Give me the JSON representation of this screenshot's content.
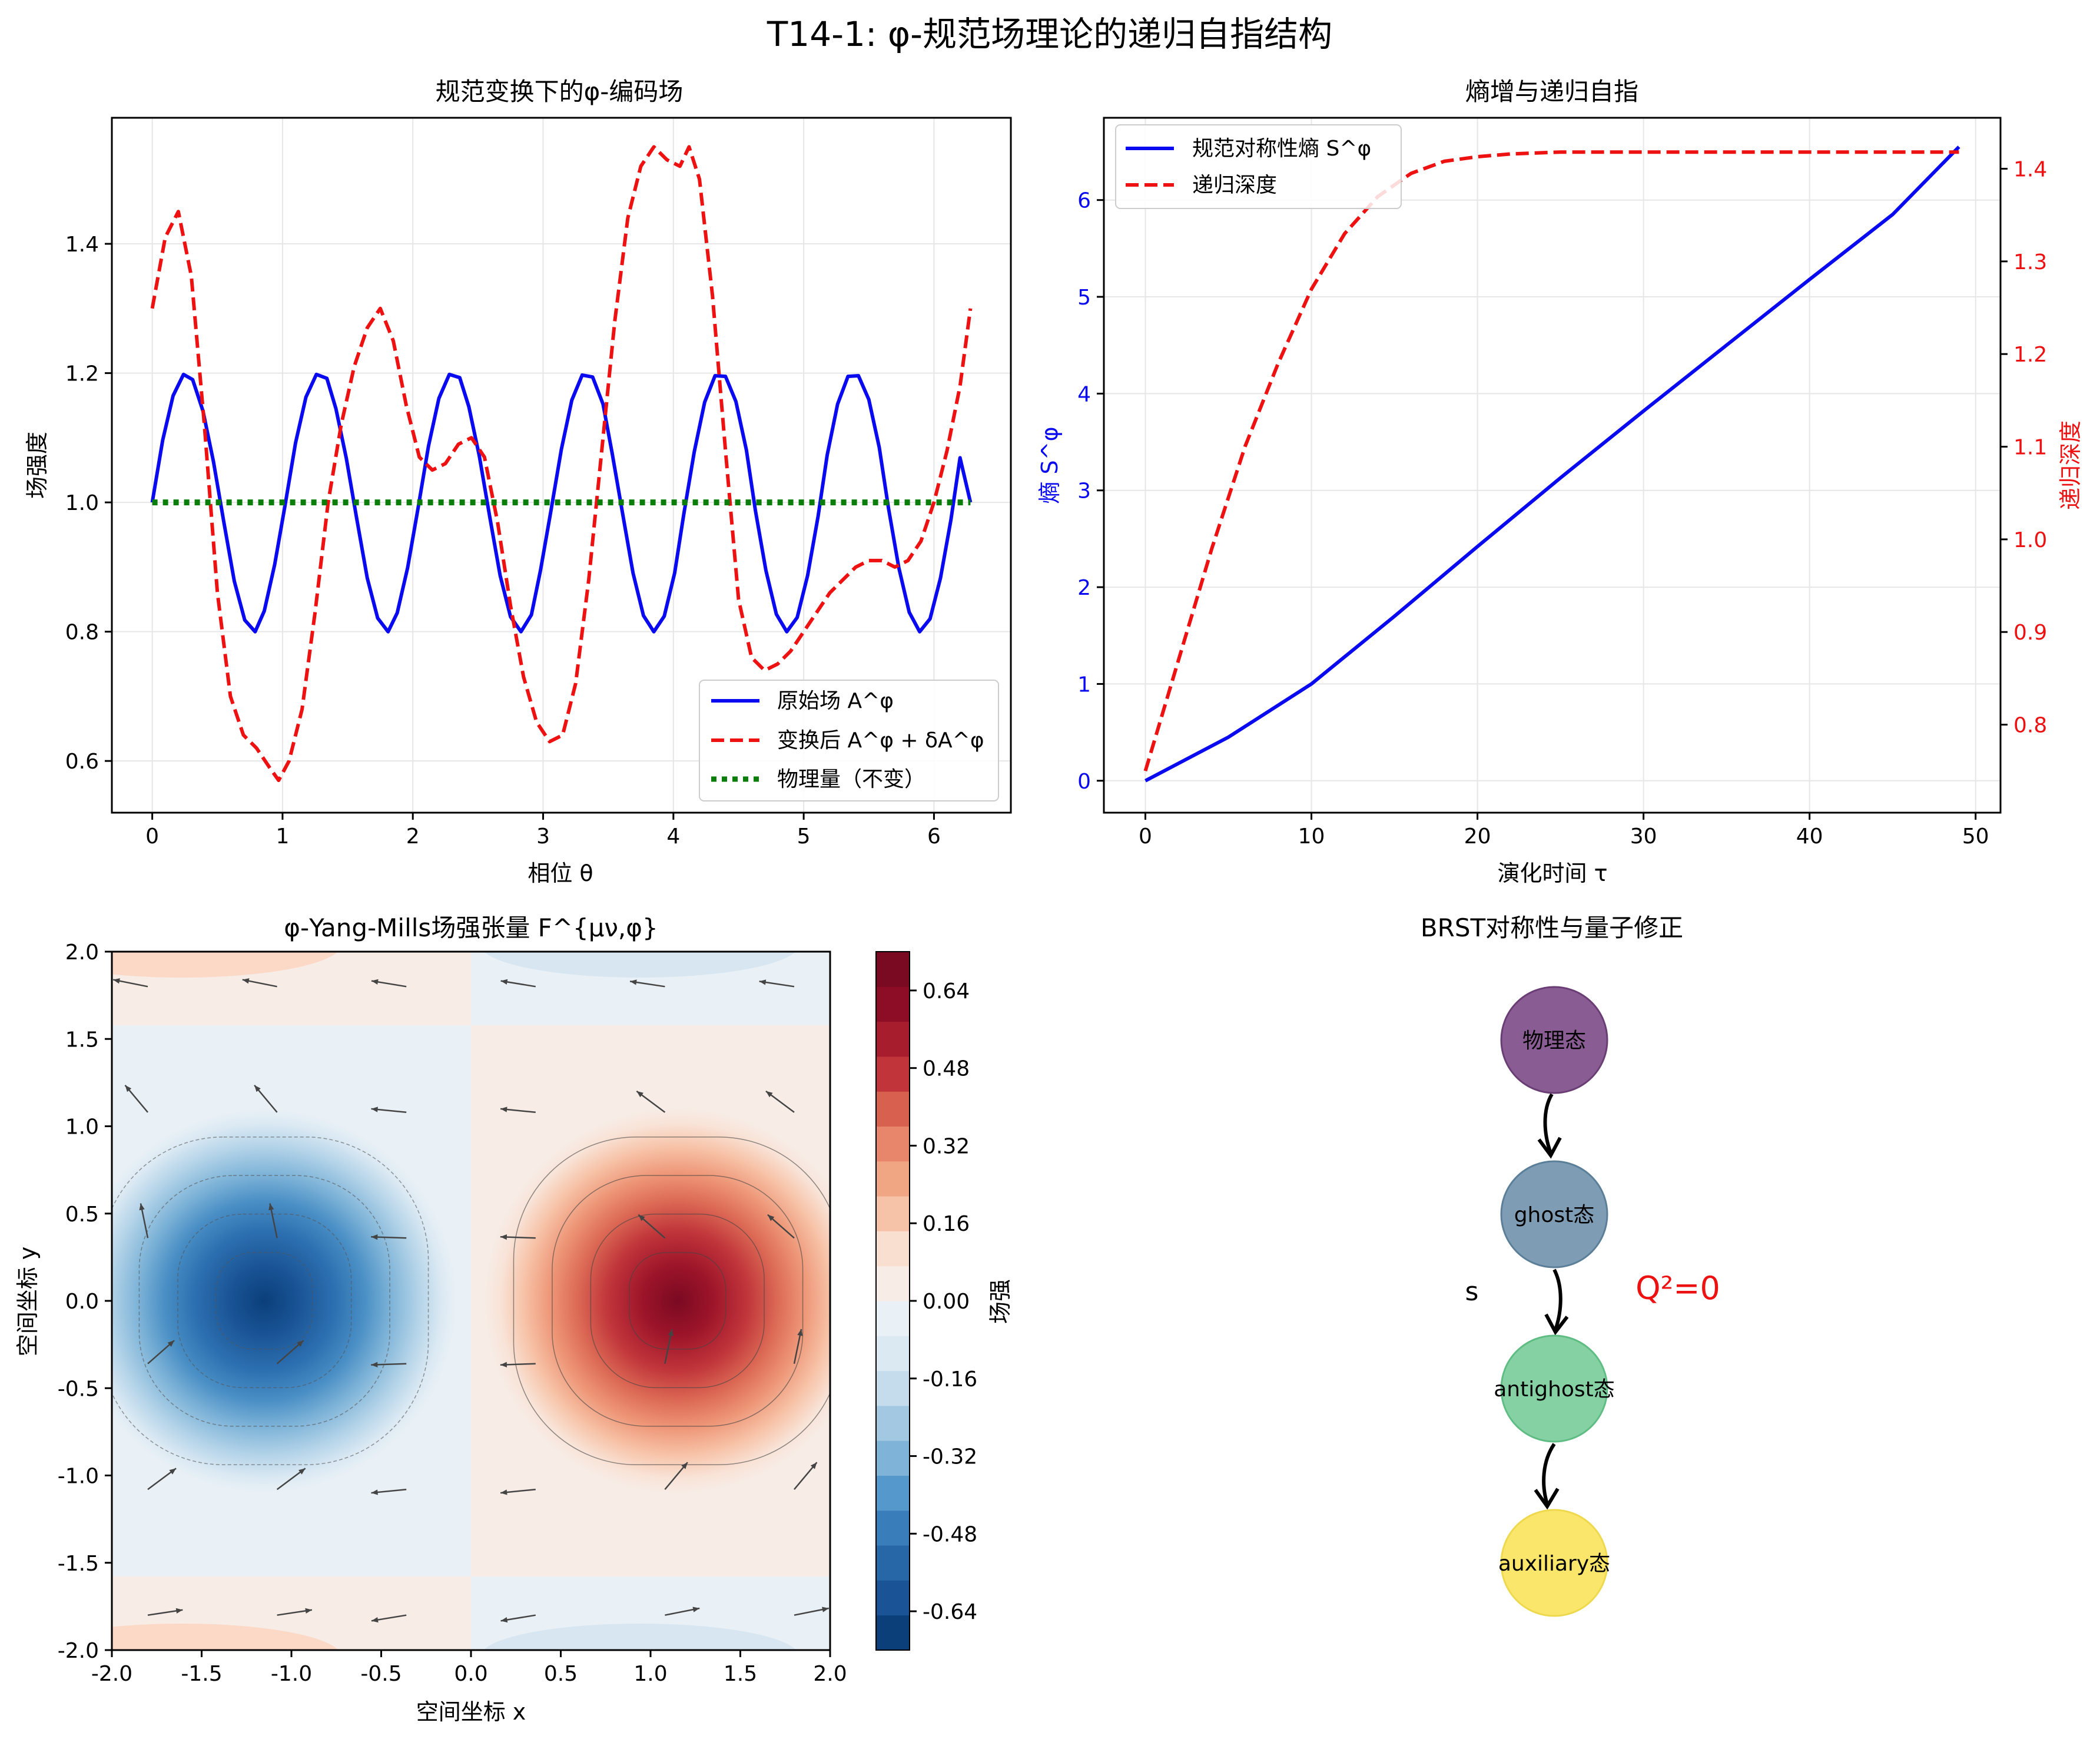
{
  "suptitle": "T14-1: φ-规范场理论的递归自指结构",
  "colors": {
    "blue": "#0a0af0",
    "red": "#ee1111",
    "green": "#0b7d0b",
    "grid": "#e6e6e6",
    "axis": "#000000"
  },
  "chart_data": [
    {
      "id": "panel1",
      "type": "line",
      "title": "规范变换下的φ-编码场",
      "xlabel": "相位 θ",
      "ylabel": "场强度",
      "xlim": [
        -0.31,
        6.59
      ],
      "ylim": [
        0.52,
        1.595
      ],
      "xticks": [
        0,
        1,
        2,
        3,
        4,
        5,
        6
      ],
      "yticks": [
        0.6,
        0.8,
        1.0,
        1.2,
        1.4
      ],
      "ytick_labels": [
        "0.6",
        "0.8",
        "1.0",
        "1.2",
        "1.4"
      ],
      "grid": true,
      "legend_position": "lower right",
      "legend": [
        "原始场 A^φ",
        "变换后 A^φ + δA^φ",
        "物理量（不变）"
      ],
      "series": [
        {
          "name": "原始场 A^φ",
          "style": "solid",
          "x": [
            0,
            0.08,
            0.16,
            0.24,
            0.31,
            0.39,
            0.47,
            0.55,
            0.63,
            0.71,
            0.79,
            0.86,
            0.94,
            1.02,
            1.1,
            1.18,
            1.26,
            1.34,
            1.41,
            1.49,
            1.57,
            1.65,
            1.73,
            1.81,
            1.88,
            1.96,
            2.04,
            2.12,
            2.2,
            2.28,
            2.36,
            2.43,
            2.51,
            2.59,
            2.67,
            2.75,
            2.83,
            2.91,
            2.98,
            3.06,
            3.14,
            3.22,
            3.3,
            3.38,
            3.46,
            3.53,
            3.61,
            3.69,
            3.77,
            3.85,
            3.93,
            4.01,
            4.08,
            4.16,
            4.24,
            4.32,
            4.4,
            4.48,
            4.56,
            4.63,
            4.71,
            4.79,
            4.87,
            4.95,
            5.03,
            5.11,
            5.18,
            5.26,
            5.34,
            5.42,
            5.5,
            5.58,
            5.65,
            5.73,
            5.81,
            5.89,
            5.97,
            6.05,
            6.13,
            6.2,
            6.28
          ],
          "values": [
            1.0,
            1.096,
            1.165,
            1.198,
            1.19,
            1.141,
            1.063,
            0.969,
            0.878,
            0.818,
            0.8,
            0.832,
            0.904,
            0.996,
            1.092,
            1.163,
            1.198,
            1.192,
            1.145,
            1.068,
            0.974,
            0.883,
            0.821,
            0.8,
            0.829,
            0.899,
            0.991,
            1.087,
            1.161,
            1.198,
            1.193,
            1.148,
            1.072,
            0.978,
            0.887,
            0.823,
            0.8,
            0.826,
            0.895,
            0.987,
            1.082,
            1.158,
            1.197,
            1.194,
            1.152,
            1.076,
            0.983,
            0.891,
            0.825,
            0.8,
            0.824,
            0.891,
            0.982,
            1.078,
            1.155,
            1.196,
            1.195,
            1.156,
            1.081,
            0.987,
            0.895,
            0.827,
            0.8,
            0.822,
            0.887,
            0.978,
            1.073,
            1.152,
            1.195,
            1.196,
            1.159,
            1.085,
            0.992,
            0.899,
            0.83,
            0.8,
            0.82,
            0.883,
            0.973,
            1.069,
            1.0
          ]
        },
        {
          "name": "变换后 A^φ + δA^φ",
          "style": "dashed",
          "x": [
            0,
            0.1,
            0.2,
            0.3,
            0.4,
            0.5,
            0.6,
            0.7,
            0.8,
            0.9,
            0.97,
            1.05,
            1.15,
            1.25,
            1.35,
            1.45,
            1.55,
            1.65,
            1.75,
            1.85,
            1.95,
            2.05,
            2.15,
            2.25,
            2.35,
            2.45,
            2.55,
            2.65,
            2.75,
            2.85,
            2.95,
            3.05,
            3.15,
            3.25,
            3.35,
            3.45,
            3.55,
            3.65,
            3.75,
            3.85,
            3.95,
            4.05,
            4.12,
            4.2,
            4.3,
            4.4,
            4.5,
            4.6,
            4.7,
            4.8,
            4.9,
            5.0,
            5.1,
            5.2,
            5.3,
            5.4,
            5.5,
            5.6,
            5.7,
            5.8,
            5.9,
            6.0,
            6.1,
            6.2,
            6.28
          ],
          "values": [
            1.3,
            1.41,
            1.45,
            1.35,
            1.12,
            0.86,
            0.7,
            0.64,
            0.62,
            0.59,
            0.57,
            0.6,
            0.68,
            0.83,
            1.0,
            1.12,
            1.21,
            1.27,
            1.3,
            1.25,
            1.15,
            1.07,
            1.05,
            1.06,
            1.09,
            1.1,
            1.07,
            0.97,
            0.84,
            0.73,
            0.66,
            0.63,
            0.64,
            0.72,
            0.88,
            1.08,
            1.28,
            1.44,
            1.52,
            1.55,
            1.53,
            1.52,
            1.55,
            1.5,
            1.32,
            1.08,
            0.85,
            0.76,
            0.74,
            0.75,
            0.77,
            0.8,
            0.83,
            0.86,
            0.88,
            0.9,
            0.91,
            0.91,
            0.9,
            0.91,
            0.94,
            1.0,
            1.08,
            1.18,
            1.3
          ]
        },
        {
          "name": "物理量（不变）",
          "style": "dotted",
          "x": [
            0,
            6.28
          ],
          "values": [
            1.0,
            1.0
          ]
        }
      ]
    },
    {
      "id": "panel2",
      "type": "line",
      "title": "熵增与递归自指",
      "xlabel": "演化时间 τ",
      "ylabel": "熵 S^φ",
      "y2label": "递归深度",
      "xlim": [
        -2.5,
        51.5
      ],
      "ylim": [
        -0.33,
        6.85
      ],
      "y2lim": [
        0.705,
        1.455
      ],
      "xticks": [
        0,
        10,
        20,
        30,
        40,
        50
      ],
      "yticks": [
        0,
        1,
        2,
        3,
        4,
        5,
        6
      ],
      "y2ticks": [
        0.8,
        0.9,
        1.0,
        1.1,
        1.2,
        1.3,
        1.4
      ],
      "y2tick_labels": [
        "0.8",
        "0.9",
        "1.0",
        "1.1",
        "1.2",
        "1.3",
        "1.4"
      ],
      "grid": true,
      "legend_position": "upper left",
      "legend": [
        "规范对称性熵 S^φ",
        "递归深度"
      ],
      "series": [
        {
          "name": "规范对称性熵 S^φ",
          "axis": "left",
          "style": "solid",
          "x": [
            0,
            5,
            10,
            15,
            20,
            25,
            30,
            35,
            40,
            45,
            49
          ],
          "values": [
            0,
            0.45,
            1.0,
            1.7,
            2.42,
            3.13,
            3.82,
            4.5,
            5.18,
            5.85,
            6.55
          ]
        },
        {
          "name": "递归深度",
          "axis": "right",
          "style": "dashed",
          "x": [
            0,
            2,
            4,
            6,
            8,
            10,
            12,
            14,
            16,
            18,
            20,
            22,
            25,
            30,
            35,
            40,
            45,
            49
          ],
          "values": [
            0.75,
            0.87,
            0.99,
            1.1,
            1.19,
            1.27,
            1.33,
            1.37,
            1.395,
            1.408,
            1.413,
            1.416,
            1.418,
            1.418,
            1.418,
            1.418,
            1.418,
            1.418
          ]
        }
      ]
    },
    {
      "id": "panel3",
      "type": "heatmap",
      "title": "φ-Yang-Mills场强张量 F^{μν,φ}",
      "xlabel": "空间坐标 x",
      "ylabel": "空间坐标 y",
      "xlim": [
        -2.0,
        2.0
      ],
      "ylim": [
        -2.0,
        2.0
      ],
      "xticks": [
        "-2.0",
        "-1.5",
        "-1.0",
        "-0.5",
        "0.0",
        "0.5",
        "1.0",
        "1.5",
        "2.0"
      ],
      "yticks": [
        "-2.0",
        "-1.5",
        "-1.0",
        "-0.5",
        "0.0",
        "0.5",
        "1.0",
        "1.5",
        "2.0"
      ],
      "colorbar_label": "场强",
      "colorbar_ticks": [
        "-0.64",
        "-0.48",
        "-0.32",
        "-0.16",
        "0.00",
        "0.16",
        "0.32",
        "0.48",
        "0.64"
      ],
      "colorbar_range": [
        -0.72,
        0.72
      ],
      "extrema": [
        {
          "x": -1.15,
          "y": 0.0,
          "value": -0.7
        },
        {
          "x": 1.15,
          "y": 0.0,
          "value": 0.7
        }
      ]
    },
    {
      "id": "panel4",
      "type": "diagram",
      "title": "BRST对称性与量子修正",
      "nodes": [
        {
          "label": "物理态",
          "color": "#8a5c94"
        },
        {
          "label": "ghost态",
          "color": "#7e9cb3"
        },
        {
          "label": "antighost态",
          "color": "#86d1a3"
        },
        {
          "label": "auxiliary态",
          "color": "#f9e66a"
        }
      ],
      "side_label": "s",
      "nilpotency_label": "Q²=0",
      "nilpotency_color": "#ee1111"
    }
  ]
}
